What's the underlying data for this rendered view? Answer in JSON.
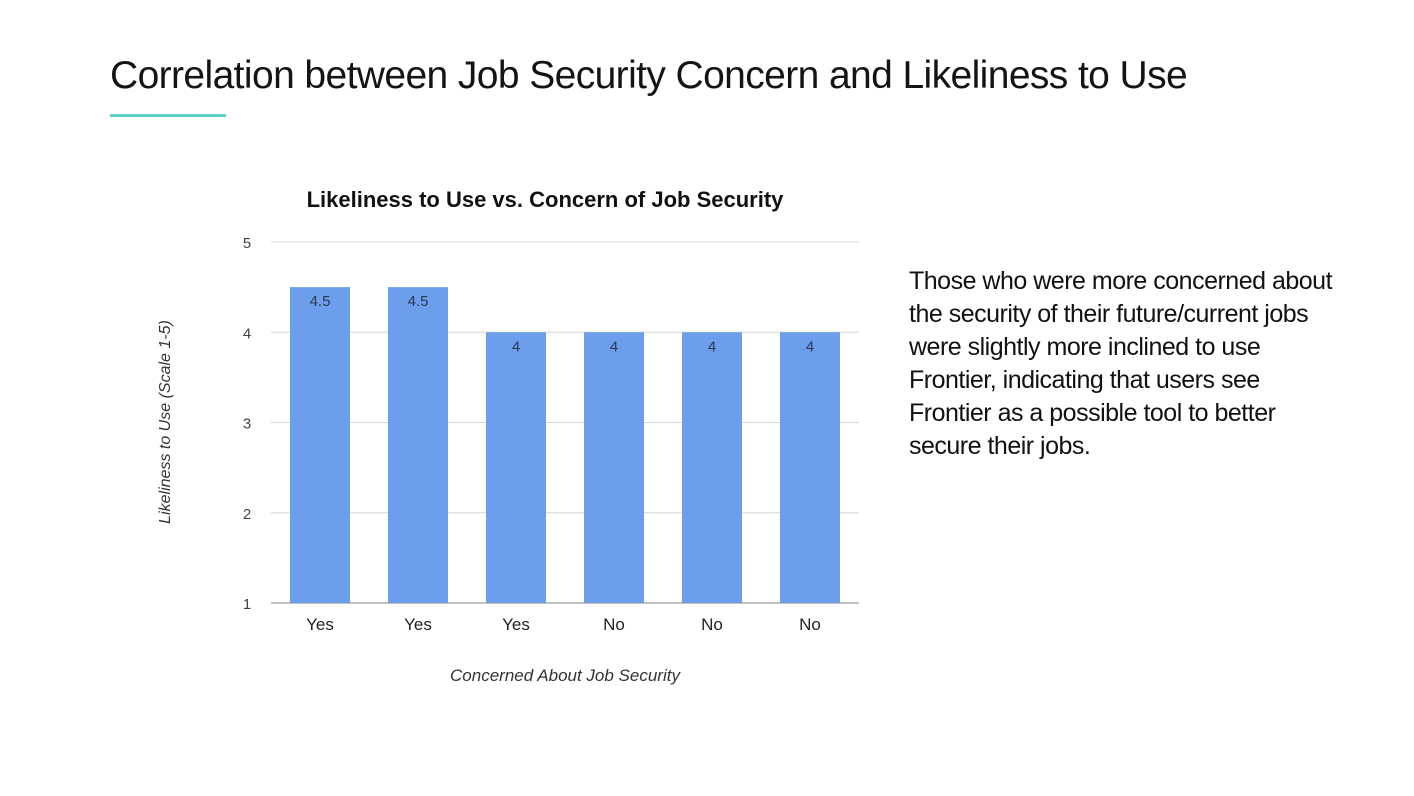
{
  "slide": {
    "title": "Correlation between Job Security Concern and Likeliness to Use",
    "accent_color": "#63cfc9",
    "body_text": "Those who were more concerned about the security of their future/current jobs were slightly more inclined to use Frontier, indicating that users see Frontier as a possible tool to better secure their jobs."
  },
  "chart_data": {
    "type": "bar",
    "title": "Likeliness to Use vs. Concern of Job Security",
    "xlabel": "Concerned About Job Security",
    "ylabel": "Likeliness to Use (Scale 1-5)",
    "categories": [
      "Yes",
      "Yes",
      "Yes",
      "No",
      "No",
      "No"
    ],
    "values": [
      4.5,
      4.5,
      4,
      4,
      4,
      4
    ],
    "data_labels": [
      "4.5",
      "4.5",
      "4",
      "4",
      "4",
      "4"
    ],
    "ylim": [
      1,
      5
    ],
    "yticks": [
      1,
      2,
      3,
      4,
      5
    ],
    "grid": true,
    "legend": "none",
    "bar_color": "#6d9eeb"
  }
}
